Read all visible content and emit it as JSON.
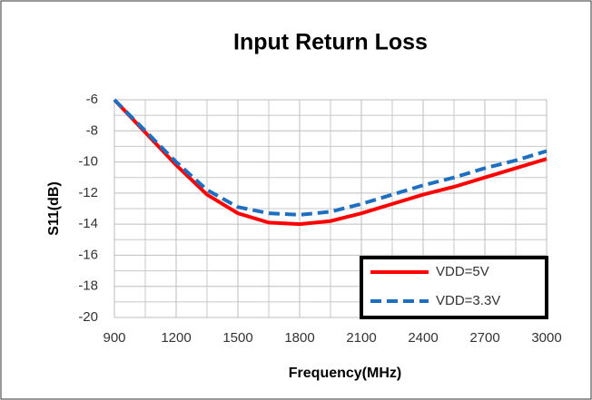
{
  "chart_data": {
    "type": "line",
    "title": "Input Return Loss",
    "x_label": "Frequency(MHz)",
    "y_label": "S11(dB)",
    "x": [
      900,
      1050,
      1200,
      1350,
      1500,
      1650,
      1800,
      1950,
      2100,
      2250,
      2400,
      2550,
      2700,
      2850,
      3000
    ],
    "series": [
      {
        "name": "VDD=5V",
        "color": "#ff0000",
        "dash": false,
        "values": [
          -6,
          -8.1,
          -10.2,
          -12.1,
          -13.3,
          -13.9,
          -14.0,
          -13.8,
          -13.3,
          -12.7,
          -12.1,
          -11.6,
          -11.0,
          -10.4,
          -9.8
        ]
      },
      {
        "name": "VDD=3.3V",
        "color": "#1f6fc1",
        "dash": true,
        "values": [
          -6,
          -8.0,
          -10.0,
          -11.8,
          -12.9,
          -13.3,
          -13.4,
          -13.2,
          -12.7,
          -12.1,
          -11.5,
          -11.0,
          -10.4,
          -9.9,
          -9.3
        ]
      }
    ],
    "xlim": [
      900,
      3000
    ],
    "xticks": [
      900,
      1200,
      1500,
      1800,
      2100,
      2400,
      2700,
      3000
    ],
    "ylim": [
      -20,
      -6
    ],
    "yticks": [
      -20,
      -18,
      -16,
      -14,
      -12,
      -10,
      -8,
      -6
    ],
    "grid": true,
    "minor_grid": true,
    "legend": "lower right"
  }
}
